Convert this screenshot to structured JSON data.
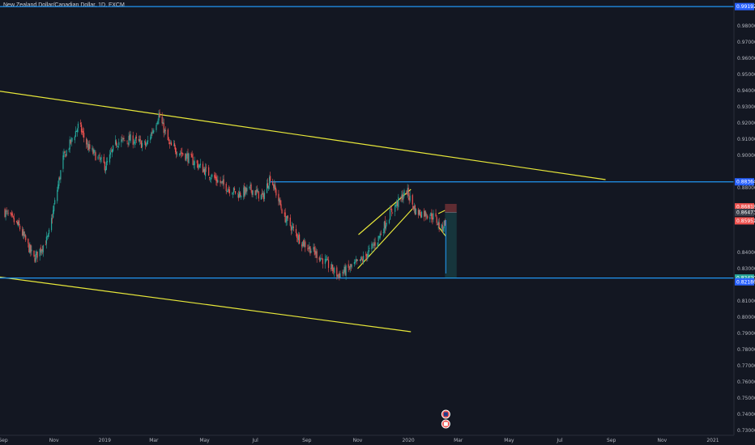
{
  "header": {
    "symbol_title": "New Zealand Dollar/Canadian Dollar, 1D, FXCM"
  },
  "colors": {
    "background": "#131722",
    "axis_border": "#2a2e39",
    "up_candle": "#26a69a",
    "down_candle": "#ef5350",
    "trendline": "#e8e83a",
    "horizontal_level": "#2196f3",
    "price_badge_red": "#ef5350",
    "price_badge_green": "#26a69a",
    "price_badge_blue": "#2962ff",
    "price_badge_gray": "#3b3f4a"
  },
  "chart_data": {
    "type": "candlestick",
    "title": "New Zealand Dollar/Canadian Dollar, 1D, FXCM",
    "ylim": [
      0.727,
      0.996
    ],
    "y_ticks": [
      "0.98000",
      "0.97000",
      "0.96000",
      "0.95000",
      "0.94000",
      "0.93000",
      "0.92000",
      "0.91000",
      "0.90000",
      "0.88000",
      "0.86000",
      "0.84000",
      "0.83000",
      "0.81000",
      "0.80000",
      "0.79000",
      "0.78000",
      "0.77000",
      "0.76000",
      "0.75000",
      "0.74000",
      "0.73000"
    ],
    "x_ticks": [
      "Sep",
      "Nov",
      "2019",
      "Mar",
      "May",
      "Jul",
      "Sep",
      "Nov",
      "2020",
      "Mar",
      "May",
      "Jul",
      "Sep",
      "Nov",
      "2021"
    ],
    "price_key_points": [
      [
        "2018-09-01",
        0.866
      ],
      [
        "2018-09-20",
        0.856
      ],
      [
        "2018-10-08",
        0.836
      ],
      [
        "2018-10-25",
        0.849
      ],
      [
        "2018-11-12",
        0.898
      ],
      [
        "2018-12-01",
        0.919
      ],
      [
        "2018-12-12",
        0.905
      ],
      [
        "2019-01-02",
        0.893
      ],
      [
        "2019-01-15",
        0.908
      ],
      [
        "2019-02-01",
        0.91
      ],
      [
        "2019-02-20",
        0.906
      ],
      [
        "2019-03-07",
        0.925
      ],
      [
        "2019-03-20",
        0.906
      ],
      [
        "2019-04-08",
        0.9
      ],
      [
        "2019-04-28",
        0.892
      ],
      [
        "2019-05-20",
        0.883
      ],
      [
        "2019-06-10",
        0.876
      ],
      [
        "2019-06-26",
        0.879
      ],
      [
        "2019-07-10",
        0.874
      ],
      [
        "2019-07-19",
        0.887
      ],
      [
        "2019-08-05",
        0.862
      ],
      [
        "2019-08-25",
        0.847
      ],
      [
        "2019-09-15",
        0.838
      ],
      [
        "2019-10-01",
        0.83
      ],
      [
        "2019-10-08",
        0.826
      ],
      [
        "2019-10-25",
        0.831
      ],
      [
        "2019-11-08",
        0.836
      ],
      [
        "2019-11-25",
        0.848
      ],
      [
        "2019-12-12",
        0.866
      ],
      [
        "2019-12-30",
        0.878
      ],
      [
        "2020-01-10",
        0.865
      ],
      [
        "2020-01-22",
        0.864
      ],
      [
        "2020-02-01",
        0.862
      ],
      [
        "2020-02-10",
        0.8545
      ],
      [
        "2020-02-14",
        0.859
      ]
    ],
    "trendlines": [
      {
        "from": [
          "2018-08-10",
          0.941
        ],
        "to": [
          "2020-08-25",
          0.885
        ]
      },
      {
        "from": [
          "2018-08-10",
          0.826
        ],
        "to": [
          "2020-01-04",
          0.791
        ]
      },
      {
        "from": [
          "2019-11-02",
          0.851
        ],
        "to": [
          "2020-01-04",
          0.879
        ]
      },
      {
        "from": [
          "2019-11-01",
          0.83
        ],
        "to": [
          "2020-01-06",
          0.867
        ]
      },
      {
        "from": [
          "2020-02-06",
          0.864
        ],
        "to": [
          "2020-02-14",
          0.866
        ]
      },
      {
        "from": [
          "2020-02-06",
          0.856
        ],
        "to": [
          "2020-02-15",
          0.85
        ]
      }
    ],
    "horizontal_levels": [
      {
        "price": 0.99192,
        "from": "2018-08-10",
        "to": "2021-04-01"
      },
      {
        "price": 0.88364,
        "from": "2019-07-19",
        "to": "2021-04-01"
      },
      {
        "price": 0.8242,
        "from": "2018-08-10",
        "to": "2021-04-01"
      }
    ],
    "position_tool": {
      "from": "2020-02-14",
      "to": "2020-02-28",
      "entry": 0.86473,
      "stop": 0.87,
      "target": 0.8242
    },
    "price_labels": [
      {
        "text": "0.99192",
        "price": 0.99192,
        "color": "blue"
      },
      {
        "text": "0.88364",
        "price": 0.88364,
        "color": "blue"
      },
      {
        "text": "0.86818",
        "price": 0.86818,
        "color": "red"
      },
      {
        "text": "0.86473",
        "price": 0.86473,
        "color": "gray"
      },
      {
        "text": "0.85952",
        "price": 0.85952,
        "color": "red"
      },
      {
        "text": "0.82420",
        "price": 0.8242,
        "color": "green"
      },
      {
        "text": "0.82186",
        "price": 0.82186,
        "color": "blue"
      }
    ],
    "grid": false,
    "legend": "none"
  }
}
